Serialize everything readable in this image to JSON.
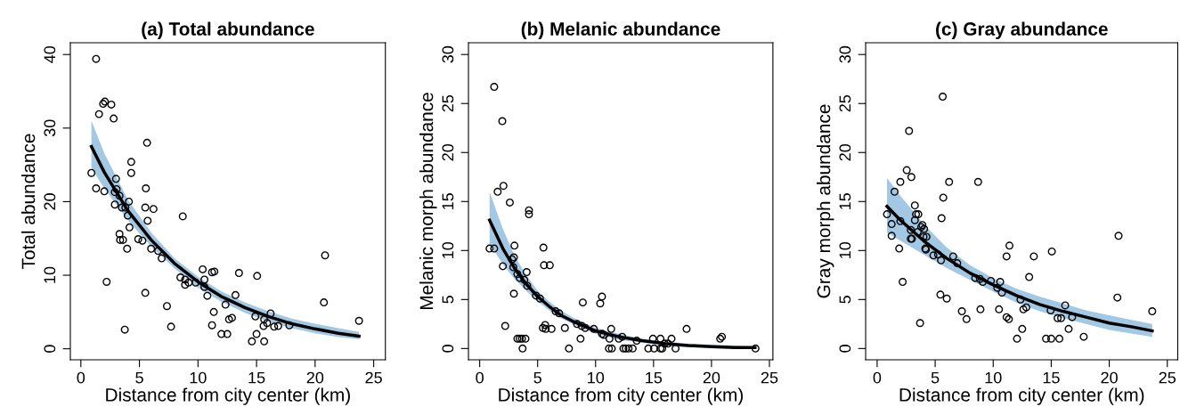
{
  "chart_data": [
    {
      "type": "scatter",
      "title": "(a) Total abundance",
      "xlabel": "Distance from city center (km)",
      "ylabel": "Total abundance",
      "xlim": [
        -0.9,
        26
      ],
      "ylim": [
        -1.5,
        41.6
      ],
      "xticks": [
        0,
        5,
        10,
        15,
        20,
        25
      ],
      "yticks": [
        0,
        10,
        20,
        30,
        40
      ],
      "series": [
        {
          "marker": "circle",
          "color": "#000000",
          "x": [
            1.3,
            1.55,
            1.9,
            2.05,
            2.6,
            2.8,
            0.9,
            1.3,
            2.0,
            2.2,
            3.0,
            3.05,
            2.9,
            3.3,
            2.9,
            3.5,
            3.8,
            4.1,
            4.0,
            4.15,
            3.3,
            3.35,
            3.6,
            3.95,
            3.75,
            4.3,
            4.3,
            5.65,
            5.55,
            5.5,
            6.2,
            5.7,
            4.9,
            5.25,
            6.0,
            6.6,
            6.9,
            5.5,
            7.35,
            7.7,
            8.7,
            8.5,
            8.9,
            8.9,
            9.2,
            9.8,
            10.4,
            10.55,
            10.55,
            10.8,
            11.2,
            11.4,
            11.35,
            11.2,
            12.0,
            12.5,
            12.35,
            12.65,
            12.9,
            13.2,
            13.5,
            15.05,
            14.9,
            15.0,
            14.6,
            15.65,
            15.6,
            15.9,
            15.65,
            16.2,
            16.5,
            16.85,
            17.8,
            20.85,
            20.75,
            23.75
          ],
          "values": [
            39.4,
            31.9,
            33.3,
            33.6,
            33.2,
            31.3,
            23.9,
            21.8,
            21.4,
            9.1,
            23.1,
            21.7,
            21.3,
            20.8,
            19.6,
            19.2,
            19.2,
            20.0,
            18.1,
            16.5,
            15.6,
            14.8,
            14.8,
            13.6,
            2.6,
            25.4,
            23.9,
            28.0,
            21.8,
            19.2,
            19.0,
            17.4,
            14.9,
            14.7,
            13.6,
            13.3,
            12.3,
            7.6,
            5.8,
            3.0,
            18.0,
            9.7,
            9.4,
            8.7,
            9.0,
            9.0,
            10.8,
            9.4,
            8.4,
            7.2,
            10.4,
            10.5,
            5.0,
            3.2,
            2.0,
            2.0,
            6.0,
            4.0,
            4.2,
            7.3,
            10.3,
            9.9,
            4.4,
            2.0,
            1.0,
            4.0,
            3.1,
            3.5,
            1.0,
            4.8,
            3.0,
            3.1,
            3.2,
            12.7,
            6.3,
            3.8
          ]
        },
        {
          "type": "line",
          "color": "#000000",
          "line_style": "solid",
          "x": [
            0.9,
            2,
            4,
            6,
            8,
            10,
            12,
            14,
            16,
            18,
            20,
            22,
            23.75
          ],
          "values": [
            27.5,
            24.0,
            18.8,
            14.8,
            11.6,
            9.1,
            7.1,
            5.6,
            4.4,
            3.4,
            2.7,
            2.1,
            1.7
          ],
          "lower": [
            24.6,
            21.8,
            17.5,
            13.9,
            10.9,
            8.3,
            6.4,
            4.9,
            3.7,
            2.8,
            2.1,
            1.6,
            1.3
          ],
          "upper": [
            31.0,
            26.6,
            20.3,
            15.8,
            12.3,
            9.8,
            7.8,
            6.3,
            5.1,
            4.1,
            3.4,
            2.8,
            2.3
          ]
        }
      ]
    },
    {
      "type": "scatter",
      "title": "(b) Melanic abundance",
      "xlabel": "Distance from city center (km)",
      "ylabel": "Melanic morph abundance",
      "xlim": [
        -0.97,
        25.3
      ],
      "ylim": [
        -1.15,
        31.2
      ],
      "xticks": [
        0,
        5,
        10,
        15,
        20,
        25
      ],
      "yticks": [
        0,
        5,
        10,
        15,
        20,
        25,
        30
      ],
      "series": [
        {
          "marker": "circle",
          "color": "#000000",
          "x": [
            0.85,
            1.25,
            1.25,
            1.55,
            1.95,
            2.05,
            2.0,
            2.2,
            2.6,
            3.0,
            2.8,
            2.95,
            2.9,
            2.95,
            3.25,
            3.45,
            3.25,
            3.45,
            3.65,
            3.7,
            3.95,
            3.85,
            4.05,
            4.1,
            4.25,
            4.25,
            4.85,
            5.2,
            5.5,
            5.55,
            6.05,
            5.45,
            5.65,
            5.7,
            6.2,
            6.55,
            6.85,
            7.35,
            7.7,
            8.4,
            8.7,
            8.9,
            8.8,
            9.1,
            9.85,
            10.4,
            10.55,
            10.55,
            10.7,
            11.2,
            11.35,
            11.15,
            11.4,
            12.0,
            12.3,
            12.4,
            12.6,
            12.85,
            13.2,
            13.55,
            14.55,
            14.95,
            15.05,
            15.6,
            15.6,
            15.75,
            15.95,
            16.25,
            16.55,
            16.9,
            17.85,
            20.75,
            20.9,
            23.8
          ],
          "values": [
            10.2,
            10.2,
            26.7,
            16.0,
            23.2,
            16.6,
            8.4,
            2.3,
            14.9,
            10.5,
            9.1,
            9.3,
            8.3,
            5.6,
            7.6,
            7.2,
            1.0,
            1.0,
            1.0,
            0,
            1.0,
            7.0,
            7.8,
            6.4,
            14.1,
            13.7,
            5.4,
            5.1,
            10.3,
            8.5,
            8.5,
            2.1,
            2.4,
            2.0,
            2.0,
            3.8,
            3.6,
            2.1,
            0,
            2.5,
            1.0,
            4.7,
            2.3,
            2.1,
            2.0,
            4.6,
            5.3,
            1.5,
            1.4,
            1.0,
            2.0,
            0,
            0,
            1.0,
            1.2,
            0,
            0,
            0,
            0,
            0.8,
            0,
            1.0,
            0,
            1.0,
            0,
            0,
            0.5,
            0.5,
            1.0,
            0,
            2.0,
            1.0,
            1.2,
            0
          ]
        },
        {
          "type": "line",
          "color": "#000000",
          "line_style": "solid",
          "x": [
            0.85,
            2,
            3,
            4,
            5,
            6,
            7,
            8,
            10,
            12,
            14,
            16,
            18,
            20,
            22,
            23.75
          ],
          "values": [
            13.1,
            10.2,
            8.2,
            6.6,
            5.3,
            4.3,
            3.4,
            2.8,
            1.8,
            1.2,
            0.8,
            0.5,
            0.3,
            0.2,
            0.1,
            0.1
          ],
          "lower": [
            10.7,
            8.6,
            7.1,
            5.9,
            4.8,
            3.9,
            3.1,
            2.5,
            1.5,
            0.9,
            0.6,
            0.3,
            0.2,
            0.1,
            0.1,
            0.0
          ],
          "upper": [
            16.0,
            12.2,
            9.5,
            7.5,
            5.9,
            4.8,
            3.9,
            3.2,
            2.1,
            1.5,
            1.0,
            0.7,
            0.5,
            0.4,
            0.3,
            0.2
          ]
        }
      ]
    },
    {
      "type": "scatter",
      "title": "(c) Gray abundance",
      "xlabel": "Distance from city center (km)",
      "ylabel": "Gray morph abundance",
      "xlim": [
        -0.99,
        25.9
      ],
      "ylim": [
        -1.15,
        31.2
      ],
      "xticks": [
        0,
        5,
        10,
        15,
        20,
        25
      ],
      "yticks": [
        0,
        5,
        10,
        15,
        20,
        25,
        30
      ],
      "series": [
        {
          "marker": "circle",
          "color": "#000000",
          "x": [
            0.85,
            1.25,
            1.25,
            1.5,
            1.9,
            2.0,
            2.0,
            2.2,
            2.55,
            2.75,
            2.95,
            2.9,
            2.9,
            3.0,
            3.25,
            3.25,
            3.35,
            3.55,
            3.5,
            3.7,
            3.8,
            3.9,
            4.0,
            4.05,
            4.15,
            4.2,
            4.25,
            4.85,
            5.25,
            5.5,
            5.55,
            5.7,
            5.65,
            5.45,
            6.0,
            6.2,
            6.55,
            6.9,
            7.3,
            7.7,
            8.45,
            8.85,
            9.1,
            8.7,
            8.9,
            9.8,
            10.6,
            10.35,
            10.75,
            10.5,
            11.15,
            11.35,
            11.15,
            11.4,
            12.05,
            12.35,
            12.5,
            12.6,
            12.85,
            13.1,
            13.5,
            14.55,
            14.95,
            15.0,
            15.05,
            15.55,
            15.7,
            15.85,
            16.2,
            16.5,
            16.8,
            17.8,
            20.7,
            20.8,
            23.7
          ],
          "values": [
            13.7,
            12.7,
            11.5,
            16.0,
            10.2,
            17.0,
            13.0,
            6.8,
            18.2,
            22.2,
            17.5,
            12.1,
            11.2,
            11.2,
            14.6,
            13.1,
            13.7,
            13.7,
            11.9,
            2.6,
            12.4,
            12.6,
            11.4,
            12.2,
            10.2,
            10.1,
            11.4,
            9.5,
            9.6,
            9.0,
            13.3,
            15.4,
            25.7,
            5.5,
            5.1,
            17.0,
            9.4,
            8.7,
            3.8,
            3.0,
            7.2,
            7.1,
            6.8,
            17.0,
            4.0,
            6.9,
            6.8,
            6.2,
            5.7,
            4.0,
            3.2,
            3.0,
            9.4,
            10.5,
            1.0,
            5.0,
            2.0,
            4.0,
            4.2,
            7.3,
            9.4,
            1.0,
            3.9,
            1.0,
            9.9,
            3.1,
            1.0,
            3.1,
            4.4,
            2.0,
            3.2,
            1.2,
            5.2,
            11.5,
            3.8
          ]
        },
        {
          "type": "line",
          "color": "#000000",
          "line_style": "solid",
          "x": [
            0.85,
            2,
            4,
            6,
            8,
            10,
            12,
            14,
            16,
            18,
            20,
            22,
            23.7
          ],
          "values": [
            14.5,
            13.1,
            11.0,
            9.2,
            7.7,
            6.5,
            5.4,
            4.5,
            3.8,
            3.2,
            2.6,
            2.2,
            1.8
          ],
          "lower": [
            11.8,
            11.0,
            9.6,
            8.2,
            7.0,
            5.8,
            4.7,
            3.8,
            3.1,
            2.5,
            1.9,
            1.5,
            1.2
          ],
          "upper": [
            17.4,
            15.6,
            12.7,
            10.3,
            8.5,
            7.2,
            6.1,
            5.3,
            4.6,
            3.9,
            3.4,
            2.9,
            2.5
          ]
        }
      ]
    }
  ]
}
